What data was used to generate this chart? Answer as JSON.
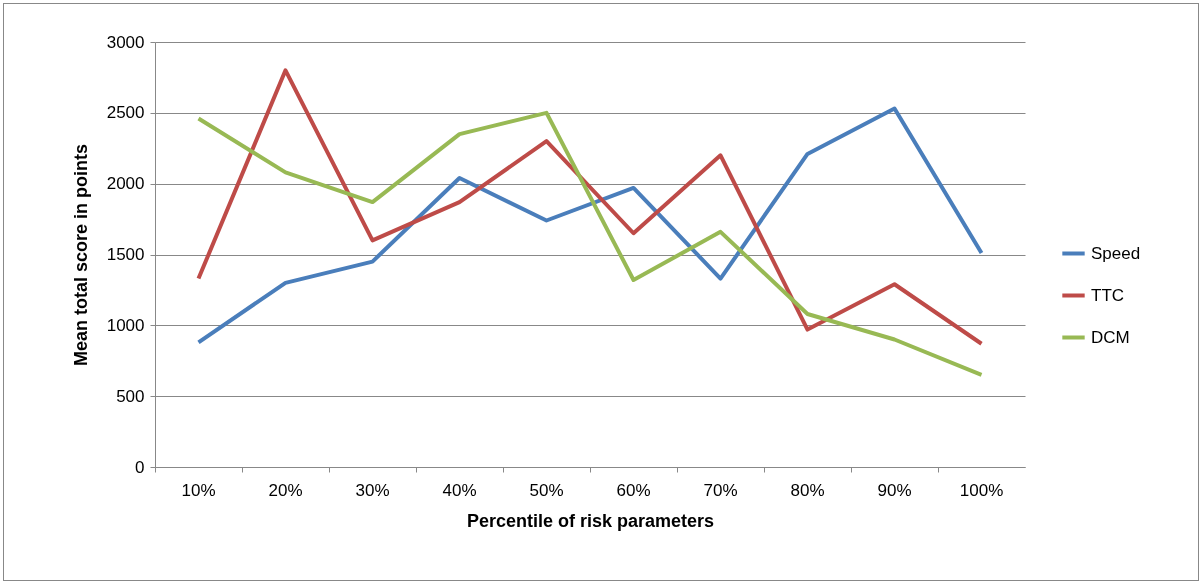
{
  "chart_data": {
    "type": "line",
    "xlabel": "Percentile of risk parameters",
    "ylabel": "Mean total score in points",
    "categories": [
      "10%",
      "20%",
      "30%",
      "40%",
      "50%",
      "60%",
      "70%",
      "80%",
      "90%",
      "100%"
    ],
    "series": [
      {
        "name": "Speed",
        "color": "#4a7ebb",
        "values": [
          880,
          1300,
          1450,
          2040,
          1740,
          1970,
          1330,
          2210,
          2530,
          1510
        ]
      },
      {
        "name": "TTC",
        "color": "#be4b48",
        "values": [
          1330,
          2800,
          1600,
          1870,
          2300,
          1650,
          2200,
          970,
          1290,
          870
        ]
      },
      {
        "name": "DCM",
        "color": "#98b954",
        "values": [
          2460,
          2080,
          1870,
          2350,
          2500,
          1320,
          1660,
          1080,
          900,
          650
        ]
      }
    ],
    "ylim": [
      0,
      3000
    ],
    "yticks": [
      0,
      500,
      1000,
      1500,
      2000,
      2500,
      3000
    ],
    "grid": "y",
    "legend": "right",
    "marker": "none",
    "line_style": "solid"
  }
}
